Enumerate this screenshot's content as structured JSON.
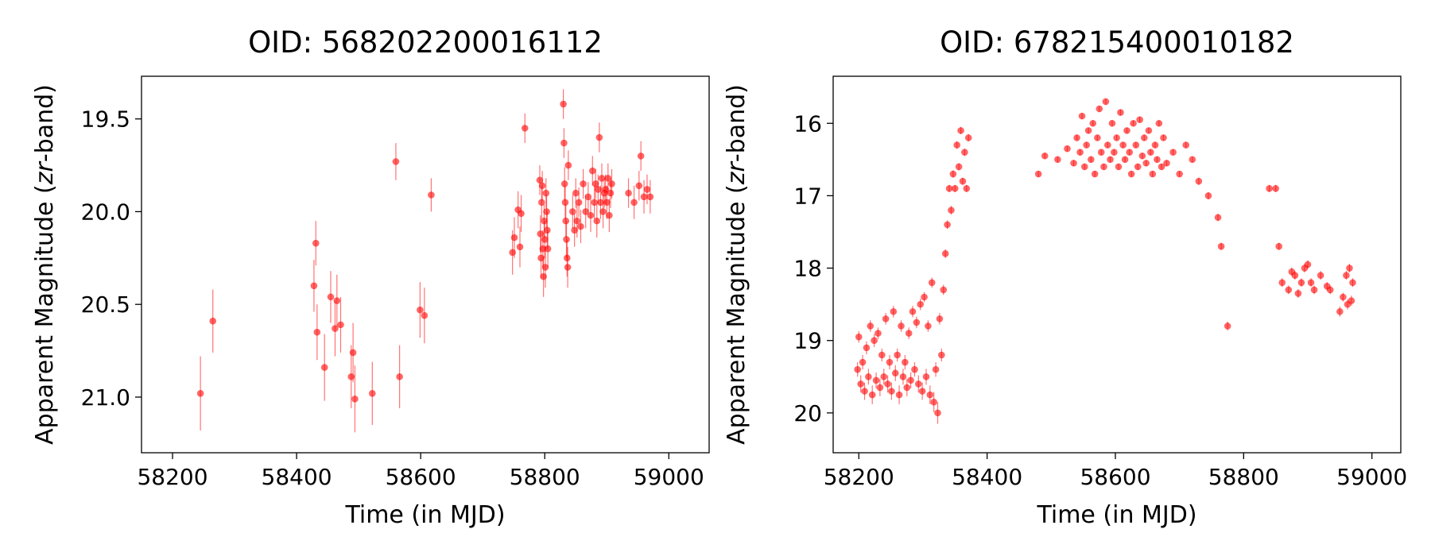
{
  "chart_data": [
    {
      "type": "scatter",
      "title": "OID: 568202200016112",
      "xlabel": "Time (in MJD)",
      "ylabel_prefix": "Apparent Magnitude (",
      "ylabel_italic": "zr",
      "ylabel_suffix": "-band)",
      "xlim": [
        58150,
        59065
      ],
      "ylim": [
        21.3,
        19.27
      ],
      "y_inverted": true,
      "xticks": [
        58200,
        58400,
        58600,
        58800,
        59000
      ],
      "xtick_labels": [
        "58200",
        "58400",
        "58600",
        "58800",
        "59000"
      ],
      "yticks": [
        19.5,
        20.0,
        20.5,
        21.0
      ],
      "ytick_labels": [
        "19.5",
        "20.0",
        "20.5",
        "21.0"
      ],
      "marker_color": "#ff0000",
      "has_error_bars": true,
      "series": [
        {
          "x": [
            58245,
            58265,
            58428,
            58431,
            58433,
            58445,
            58455,
            58462,
            58465,
            58471,
            58488,
            58491,
            58494,
            58522,
            58560,
            58566,
            58599,
            58606,
            58617,
            58748,
            58751,
            58757,
            58760,
            58762,
            58768,
            58792,
            58793,
            58794,
            58795,
            58796,
            58797,
            58798,
            58799,
            58800,
            58801,
            58802,
            58803,
            58804,
            58805,
            58830,
            58831,
            58832,
            58833,
            58834,
            58835,
            58836,
            58837,
            58838,
            58845,
            58848,
            58850,
            58852,
            58855,
            58858,
            58862,
            58866,
            58870,
            58874,
            58877,
            58880,
            58882,
            58884,
            58886,
            58888,
            58890,
            58892,
            58894,
            58896,
            58898,
            58900,
            58902,
            58904,
            58906,
            58908,
            58935,
            58944,
            58952,
            58955,
            58960,
            58965,
            58970
          ],
          "y": [
            20.98,
            20.59,
            20.4,
            20.17,
            20.65,
            20.84,
            20.46,
            20.63,
            20.48,
            20.61,
            20.89,
            20.76,
            21.01,
            20.98,
            19.73,
            20.89,
            20.53,
            20.56,
            19.91,
            20.22,
            20.14,
            19.99,
            20.19,
            20.01,
            19.55,
            19.83,
            20.12,
            20.25,
            19.95,
            19.86,
            20.2,
            20.35,
            20.05,
            20.15,
            20.3,
            19.9,
            20.0,
            20.1,
            20.2,
            19.42,
            19.63,
            19.85,
            19.95,
            20.05,
            20.15,
            20.25,
            20.3,
            19.75,
            20.0,
            20.1,
            19.9,
            20.05,
            19.95,
            20.08,
            19.85,
            20.0,
            19.92,
            20.02,
            19.78,
            19.95,
            19.85,
            20.05,
            19.88,
            19.6,
            19.95,
            19.82,
            20.0,
            19.9,
            19.88,
            19.95,
            19.82,
            20.02,
            19.9,
            19.85,
            19.9,
            19.95,
            19.86,
            19.7,
            19.92,
            19.88,
            19.92
          ],
          "yerr": [
            0.2,
            0.17,
            0.14,
            0.12,
            0.15,
            0.18,
            0.14,
            0.15,
            0.14,
            0.15,
            0.17,
            0.16,
            0.18,
            0.17,
            0.1,
            0.17,
            0.15,
            0.15,
            0.09,
            0.12,
            0.11,
            0.1,
            0.11,
            0.1,
            0.08,
            0.08,
            0.1,
            0.11,
            0.09,
            0.08,
            0.1,
            0.11,
            0.09,
            0.1,
            0.11,
            0.08,
            0.09,
            0.1,
            0.1,
            0.08,
            0.08,
            0.09,
            0.09,
            0.09,
            0.1,
            0.1,
            0.11,
            0.08,
            0.09,
            0.09,
            0.08,
            0.09,
            0.08,
            0.09,
            0.08,
            0.09,
            0.08,
            0.09,
            0.08,
            0.09,
            0.08,
            0.09,
            0.08,
            0.08,
            0.09,
            0.08,
            0.09,
            0.08,
            0.08,
            0.09,
            0.08,
            0.09,
            0.08,
            0.08,
            0.08,
            0.09,
            0.08,
            0.08,
            0.09,
            0.08,
            0.09
          ]
        }
      ]
    },
    {
      "type": "scatter",
      "title": "OID: 678215400010182",
      "xlabel": "Time (in MJD)",
      "ylabel_prefix": "Apparent Magnitude (",
      "ylabel_italic": "zr",
      "ylabel_suffix": "-band)",
      "xlim": [
        58160,
        59045
      ],
      "ylim": [
        20.55,
        15.35
      ],
      "y_inverted": true,
      "xticks": [
        58200,
        58400,
        58600,
        58800,
        59000
      ],
      "xtick_labels": [
        "58200",
        "58400",
        "58600",
        "58800",
        "59000"
      ],
      "yticks": [
        16,
        17,
        18,
        19,
        20
      ],
      "ytick_labels": [
        "16",
        "17",
        "18",
        "19",
        "20"
      ],
      "marker_color": "#ff0000",
      "has_error_bars": true,
      "series": [
        {
          "x": [
            58198,
            58200,
            58203,
            58206,
            58209,
            58212,
            58215,
            58218,
            58221,
            58224,
            58227,
            58230,
            58233,
            58236,
            58239,
            58242,
            58245,
            58248,
            58251,
            58254,
            58257,
            58260,
            58263,
            58266,
            58269,
            58272,
            58275,
            58278,
            58281,
            58284,
            58287,
            58290,
            58293,
            58296,
            58299,
            58302,
            58305,
            58308,
            58311,
            58314,
            58317,
            58320,
            58323,
            58326,
            58329,
            58332,
            58335,
            58338,
            58341,
            58344,
            58347,
            58350,
            58353,
            58356,
            58359,
            58362,
            58365,
            58368,
            58371,
            58480,
            58490,
            58510,
            58525,
            58535,
            58540,
            58545,
            58548,
            58552,
            58555,
            58558,
            58562,
            58565,
            58568,
            58572,
            58575,
            58578,
            58582,
            58585,
            58588,
            58592,
            58595,
            58598,
            58602,
            58605,
            58608,
            58612,
            58615,
            58618,
            58622,
            58625,
            58628,
            58632,
            58635,
            58638,
            58642,
            58645,
            58648,
            58652,
            58655,
            58658,
            58662,
            58665,
            58668,
            58672,
            58675,
            58680,
            58690,
            58700,
            58710,
            58720,
            58730,
            58745,
            58760,
            58765,
            58775,
            58840,
            58850,
            58855,
            58860,
            58870,
            58875,
            58880,
            58885,
            58890,
            58895,
            58900,
            58905,
            58910,
            58920,
            58930,
            58935,
            58950,
            58955,
            58960,
            58962,
            58965,
            58968,
            58970
          ],
          "y": [
            19.4,
            18.95,
            19.6,
            19.3,
            19.7,
            19.1,
            19.5,
            18.8,
            19.75,
            19.0,
            19.55,
            18.9,
            19.65,
            19.2,
            19.5,
            18.7,
            19.6,
            19.3,
            19.7,
            18.6,
            19.45,
            19.2,
            19.75,
            18.8,
            19.5,
            19.3,
            19.65,
            18.9,
            19.55,
            18.6,
            19.4,
            18.75,
            19.6,
            18.5,
            19.7,
            18.4,
            19.5,
            18.8,
            19.75,
            18.2,
            19.85,
            19.4,
            20.0,
            18.7,
            19.2,
            18.3,
            17.8,
            17.4,
            16.9,
            17.2,
            16.7,
            16.9,
            16.3,
            16.6,
            16.1,
            16.8,
            16.4,
            16.9,
            16.2,
            16.7,
            16.45,
            16.5,
            16.35,
            16.55,
            16.2,
            16.4,
            15.9,
            16.6,
            16.3,
            16.1,
            16.5,
            16.0,
            16.7,
            16.2,
            15.8,
            16.4,
            16.6,
            15.7,
            16.3,
            16.5,
            16.0,
            16.4,
            16.2,
            16.6,
            15.85,
            16.3,
            16.5,
            16.1,
            16.4,
            16.7,
            16.0,
            16.3,
            16.6,
            15.95,
            16.45,
            16.2,
            16.55,
            16.1,
            16.4,
            16.7,
            16.3,
            16.5,
            16.0,
            16.6,
            16.2,
            16.55,
            16.4,
            16.7,
            16.3,
            16.5,
            16.8,
            17.0,
            17.3,
            17.7,
            18.8,
            16.9,
            16.9,
            17.7,
            18.2,
            18.3,
            18.05,
            18.1,
            18.35,
            18.2,
            18.0,
            17.95,
            18.2,
            18.3,
            18.1,
            18.25,
            18.3,
            18.6,
            18.4,
            18.1,
            18.5,
            18.0,
            18.45,
            18.2
          ],
          "yerr": [
            0.1,
            0.08,
            0.12,
            0.1,
            0.12,
            0.09,
            0.11,
            0.08,
            0.13,
            0.09,
            0.11,
            0.08,
            0.12,
            0.09,
            0.11,
            0.08,
            0.12,
            0.1,
            0.12,
            0.08,
            0.11,
            0.09,
            0.13,
            0.08,
            0.11,
            0.1,
            0.12,
            0.08,
            0.11,
            0.08,
            0.1,
            0.08,
            0.12,
            0.08,
            0.12,
            0.07,
            0.11,
            0.08,
            0.13,
            0.07,
            0.14,
            0.1,
            0.15,
            0.08,
            0.09,
            0.07,
            0.06,
            0.06,
            0.05,
            0.06,
            0.05,
            0.05,
            0.05,
            0.05,
            0.05,
            0.05,
            0.05,
            0.05,
            0.05,
            0.04,
            0.04,
            0.04,
            0.04,
            0.04,
            0.04,
            0.04,
            0.04,
            0.04,
            0.04,
            0.04,
            0.04,
            0.04,
            0.04,
            0.04,
            0.04,
            0.04,
            0.04,
            0.04,
            0.04,
            0.04,
            0.04,
            0.04,
            0.04,
            0.04,
            0.04,
            0.04,
            0.04,
            0.04,
            0.04,
            0.04,
            0.04,
            0.04,
            0.04,
            0.04,
            0.04,
            0.04,
            0.04,
            0.04,
            0.04,
            0.04,
            0.04,
            0.04,
            0.04,
            0.04,
            0.04,
            0.04,
            0.04,
            0.04,
            0.04,
            0.04,
            0.05,
            0.05,
            0.05,
            0.05,
            0.06,
            0.05,
            0.05,
            0.05,
            0.06,
            0.06,
            0.06,
            0.06,
            0.06,
            0.06,
            0.06,
            0.06,
            0.06,
            0.06,
            0.06,
            0.06,
            0.06,
            0.07,
            0.06,
            0.06,
            0.07,
            0.06,
            0.07,
            0.06
          ]
        }
      ]
    }
  ]
}
